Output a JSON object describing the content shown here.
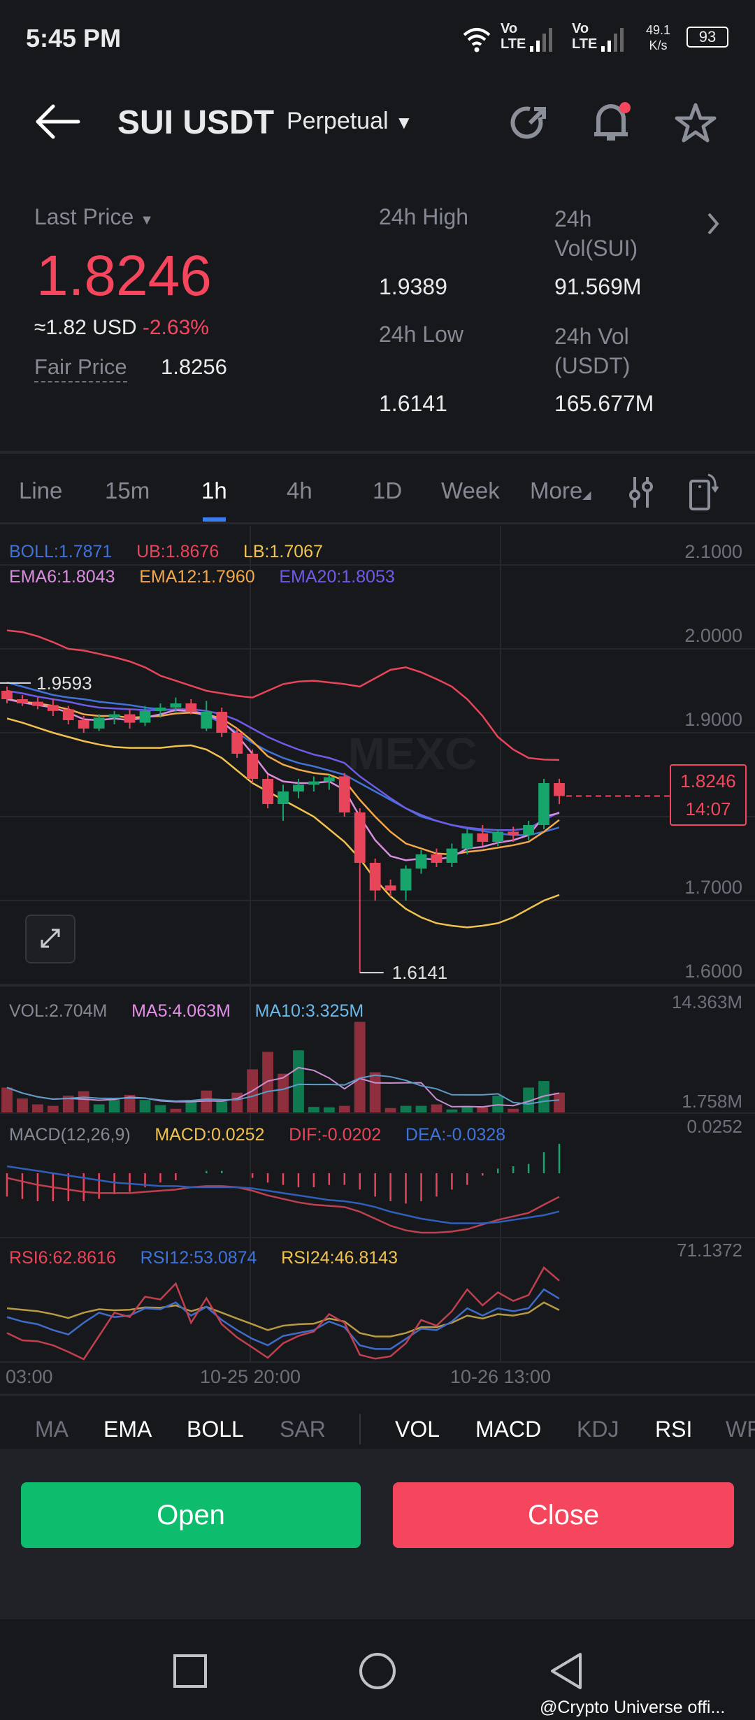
{
  "status_bar": {
    "time": "5:45 PM",
    "network1": "Vo LTE",
    "network2": "Vo LTE",
    "speed_value": "49.1",
    "speed_unit": "K/s",
    "battery": "93"
  },
  "header": {
    "title": "SUI USDT",
    "contract_type": "Perpetual",
    "icons": [
      "back-arrow-icon",
      "refresh-icon",
      "bell-icon",
      "star-icon"
    ]
  },
  "ticker": {
    "last_price_label": "Last Price",
    "last_price": "1.8246",
    "usd_value": "≈1.82 USD",
    "change": "-2.63%",
    "fair_price_label": "Fair Price",
    "fair_price": "1.8256",
    "high_label": "24h High",
    "high": "1.9389",
    "low_label": "24h Low",
    "low": "1.6141",
    "vol_sui_label_1": "24h",
    "vol_sui_label_2": "Vol(SUI)",
    "vol_sui": "91.569M",
    "vol_usdt_label_1": "24h Vol",
    "vol_usdt_label_2": "(USDT)",
    "vol_usdt": "165.677M"
  },
  "interval_tabs": [
    {
      "label": "Line"
    },
    {
      "label": "15m"
    },
    {
      "label": "1h",
      "active": true
    },
    {
      "label": "4h"
    },
    {
      "label": "1D"
    },
    {
      "label": "Week"
    },
    {
      "label": "More"
    }
  ],
  "colors": {
    "up": "#16a56b",
    "down": "#e8455a",
    "accent": "#3b7cf0",
    "open_button": "#0ebc6e",
    "close_button": "#f6465d"
  },
  "legends": {
    "boll": "BOLL:1.7871",
    "ub": "UB:1.8676",
    "lb": "LB:1.7067",
    "ema6": "EMA6:1.8043",
    "ema12": "EMA12:1.7960",
    "ema20": "EMA20:1.8053",
    "vol": "VOL:2.704M",
    "ma5": "MA5:4.063M",
    "ma10": "MA10:3.325M",
    "macd_params": "MACD(12,26,9)",
    "macd": "MACD:0.0252",
    "dif": "DIF:-0.0202",
    "dea": "DEA:-0.0328",
    "rsi6": "RSI6:62.8616",
    "rsi12": "RSI12:53.0874",
    "rsi24": "RSI24:46.8143"
  },
  "chart_data": {
    "type": "candlestick",
    "price_ticks": [
      "2.1000",
      "2.0000",
      "1.9000",
      "1.7000",
      "1.6000"
    ],
    "price_tick_values": [
      2.1,
      2.0,
      1.9,
      1.7,
      1.6
    ],
    "current_price_tag": "1.8246",
    "countdown": "14:07",
    "high_marker": "1.9593",
    "low_marker": "1.6141",
    "watermark": "MEXC",
    "time_labels": [
      "03:00",
      "10-25 20:00",
      "10-26 13:00"
    ],
    "ohlc": [
      [
        1.95,
        1.955,
        1.935,
        1.94
      ],
      [
        1.94,
        1.945,
        1.932,
        1.935
      ],
      [
        1.937,
        1.942,
        1.928,
        1.932
      ],
      [
        1.933,
        1.94,
        1.92,
        1.926
      ],
      [
        1.928,
        1.932,
        1.91,
        1.915
      ],
      [
        1.915,
        1.92,
        1.9,
        1.905
      ],
      [
        1.905,
        1.922,
        1.902,
        1.918
      ],
      [
        1.918,
        1.926,
        1.91,
        1.922
      ],
      [
        1.922,
        1.928,
        1.905,
        1.912
      ],
      [
        1.912,
        1.932,
        1.908,
        1.926
      ],
      [
        1.926,
        1.935,
        1.918,
        1.93
      ],
      [
        1.93,
        1.942,
        1.925,
        1.935
      ],
      [
        1.935,
        1.94,
        1.922,
        1.925
      ],
      [
        1.905,
        1.938,
        1.902,
        1.925
      ],
      [
        1.925,
        1.93,
        1.895,
        1.9
      ],
      [
        1.9,
        1.905,
        1.87,
        1.875
      ],
      [
        1.875,
        1.88,
        1.84,
        1.845
      ],
      [
        1.845,
        1.85,
        1.81,
        1.815
      ],
      [
        1.815,
        1.838,
        1.795,
        1.83
      ],
      [
        1.83,
        1.845,
        1.822,
        1.838
      ],
      [
        1.838,
        1.848,
        1.83,
        1.842
      ],
      [
        1.842,
        1.85,
        1.832,
        1.847
      ],
      [
        1.848,
        1.852,
        1.8,
        1.805
      ],
      [
        1.805,
        1.81,
        1.6141,
        1.745
      ],
      [
        1.745,
        1.75,
        1.7,
        1.712
      ],
      [
        1.718,
        1.725,
        1.705,
        1.712
      ],
      [
        1.712,
        1.742,
        1.7,
        1.738
      ],
      [
        1.738,
        1.76,
        1.732,
        1.755
      ],
      [
        1.755,
        1.762,
        1.74,
        1.745
      ],
      [
        1.745,
        1.768,
        1.74,
        1.762
      ],
      [
        1.762,
        1.785,
        1.755,
        1.78
      ],
      [
        1.78,
        1.79,
        1.765,
        1.77
      ],
      [
        1.77,
        1.785,
        1.765,
        1.782
      ],
      [
        1.782,
        1.788,
        1.77,
        1.778
      ],
      [
        1.778,
        1.795,
        1.772,
        1.79
      ],
      [
        1.79,
        1.845,
        1.785,
        1.84
      ],
      [
        1.84,
        1.845,
        1.815,
        1.8246
      ]
    ],
    "boll_ub": [
      2.022,
      2.02,
      2.015,
      2.008,
      2.0,
      1.998,
      1.994,
      1.99,
      1.985,
      1.978,
      1.968,
      1.962,
      1.956,
      1.95,
      1.947,
      1.944,
      1.942,
      1.95,
      1.958,
      1.961,
      1.962,
      1.96,
      1.958,
      1.955,
      1.965,
      1.975,
      1.978,
      1.972,
      1.964,
      1.955,
      1.94,
      1.92,
      1.895,
      1.88,
      1.87,
      1.868,
      1.8676
    ],
    "boll_lb": [
      1.917,
      1.912,
      1.906,
      1.9,
      1.895,
      1.89,
      1.886,
      1.883,
      1.882,
      1.882,
      1.882,
      1.884,
      1.885,
      1.88,
      1.87,
      1.855,
      1.84,
      1.83,
      1.82,
      1.81,
      1.8,
      1.785,
      1.77,
      1.75,
      1.725,
      1.705,
      1.69,
      1.68,
      1.673,
      1.67,
      1.668,
      1.67,
      1.673,
      1.68,
      1.69,
      1.7,
      1.7067
    ],
    "boll_mid": [
      1.96,
      1.955,
      1.95,
      1.945,
      1.942,
      1.94,
      1.937,
      1.935,
      1.933,
      1.93,
      1.928,
      1.927,
      1.925,
      1.92,
      1.912,
      1.9,
      1.888,
      1.878,
      1.87,
      1.864,
      1.86,
      1.855,
      1.85,
      1.84,
      1.83,
      1.82,
      1.81,
      1.8,
      1.795,
      1.79,
      1.786,
      1.783,
      1.78,
      1.778,
      1.778,
      1.782,
      1.7871
    ],
    "ema20": [
      1.95,
      1.947,
      1.943,
      1.94,
      1.937,
      1.933,
      1.93,
      1.929,
      1.928,
      1.927,
      1.927,
      1.928,
      1.928,
      1.926,
      1.922,
      1.915,
      1.905,
      1.895,
      1.887,
      1.88,
      1.874,
      1.87,
      1.864,
      1.848,
      1.835,
      1.822,
      1.81,
      1.802,
      1.795,
      1.79,
      1.787,
      1.785,
      1.784,
      1.784,
      1.786,
      1.796,
      1.8053
    ],
    "ema12": [
      1.94,
      1.937,
      1.935,
      1.932,
      1.928,
      1.922,
      1.92,
      1.92,
      1.918,
      1.919,
      1.92,
      1.923,
      1.924,
      1.922,
      1.917,
      1.905,
      1.89,
      1.872,
      1.862,
      1.856,
      1.852,
      1.85,
      1.843,
      1.82,
      1.8,
      1.782,
      1.768,
      1.762,
      1.756,
      1.755,
      1.758,
      1.76,
      1.763,
      1.766,
      1.77,
      1.782,
      1.796
    ],
    "ema6": [
      1.94,
      1.936,
      1.933,
      1.93,
      1.924,
      1.916,
      1.915,
      1.917,
      1.915,
      1.918,
      1.922,
      1.927,
      1.926,
      1.922,
      1.914,
      1.897,
      1.875,
      1.851,
      1.842,
      1.84,
      1.84,
      1.842,
      1.832,
      1.8,
      1.772,
      1.753,
      1.748,
      1.75,
      1.749,
      1.752,
      1.762,
      1.764,
      1.769,
      1.772,
      1.778,
      1.8,
      1.8043
    ],
    "volume_ticks": [
      "14.363M",
      "1.758M"
    ],
    "volume_max": 14.363,
    "volume": [
      3.4,
      1.9,
      1.1,
      0.9,
      2.3,
      2.9,
      1.1,
      1.7,
      2.4,
      1.7,
      1.0,
      0.5,
      1.7,
      3.0,
      1.5,
      2.7,
      5.9,
      8.3,
      5.3,
      8.5,
      0.75,
      0.7,
      0.9,
      12.4,
      5.5,
      0.6,
      0.9,
      0.9,
      1.1,
      0.4,
      0.7,
      0.7,
      2.3,
      0.5,
      3.4,
      4.3,
      2.704
    ],
    "volume_up": [
      false,
      false,
      false,
      false,
      false,
      false,
      true,
      true,
      false,
      true,
      true,
      false,
      true,
      false,
      true,
      false,
      false,
      false,
      false,
      true,
      true,
      true,
      false,
      false,
      false,
      false,
      true,
      true,
      false,
      true,
      true,
      false,
      true,
      false,
      true,
      true,
      false
    ],
    "macd_tick": "0.0252",
    "dif": [
      -0.004,
      -0.007,
      -0.01,
      -0.012,
      -0.014,
      -0.016,
      -0.017,
      -0.017,
      -0.017,
      -0.016,
      -0.015,
      -0.014,
      -0.012,
      -0.011,
      -0.011,
      -0.012,
      -0.015,
      -0.019,
      -0.022,
      -0.025,
      -0.027,
      -0.028,
      -0.029,
      -0.033,
      -0.039,
      -0.045,
      -0.049,
      -0.051,
      -0.051,
      -0.05,
      -0.048,
      -0.044,
      -0.04,
      -0.037,
      -0.034,
      -0.027,
      -0.0202
    ],
    "dea": [
      0.006,
      0.004,
      0.002,
      0.0,
      -0.002,
      -0.004,
      -0.006,
      -0.008,
      -0.009,
      -0.01,
      -0.011,
      -0.011,
      -0.012,
      -0.012,
      -0.012,
      -0.012,
      -0.013,
      -0.015,
      -0.017,
      -0.019,
      -0.021,
      -0.023,
      -0.024,
      -0.026,
      -0.029,
      -0.033,
      -0.036,
      -0.039,
      -0.041,
      -0.043,
      -0.043,
      -0.043,
      -0.042,
      -0.04,
      -0.038,
      -0.036,
      -0.0328
    ],
    "rsi_tick": "71.1372",
    "rsi6": [
      34.3,
      30.3,
      29.8,
      27.6,
      24.0,
      20.0,
      32.7,
      45.4,
      43.0,
      54.1,
      52.6,
      61.3,
      39.9,
      53.3,
      39.1,
      31.9,
      26.4,
      20.8,
      28.7,
      32.7,
      35.1,
      44.6,
      39.9,
      22.4,
      20.3,
      21.6,
      28.7,
      41.4,
      38.3,
      46.2,
      58.1,
      49.4,
      56.5,
      51.8,
      55.0,
      70.0,
      62.8616
    ],
    "rsi12": [
      43.0,
      40.6,
      39.1,
      35.9,
      33.5,
      39.9,
      45.4,
      43.0,
      43.8,
      47.8,
      47.3,
      51.0,
      43.8,
      48.6,
      41.4,
      35.9,
      31.1,
      27.6,
      32.7,
      34.3,
      35.9,
      40.6,
      37.5,
      27.6,
      25.6,
      25.6,
      31.1,
      36.7,
      35.9,
      40.6,
      47.8,
      43.8,
      47.8,
      46.2,
      47.8,
      58.1,
      53.0874
    ],
    "rsi24": [
      47.8,
      47.0,
      46.2,
      44.6,
      42.5,
      45.4,
      47.3,
      46.7,
      47.0,
      48.3,
      48.1,
      49.4,
      46.2,
      48.6,
      45.4,
      42.2,
      39.1,
      35.9,
      38.3,
      39.1,
      39.4,
      42.2,
      40.6,
      34.3,
      32.4,
      32.4,
      34.3,
      37.5,
      37.5,
      39.9,
      43.8,
      42.2,
      44.6,
      43.8,
      45.4,
      51.0,
      46.8143
    ]
  },
  "indicator_tabs": [
    {
      "label": "MA"
    },
    {
      "label": "EMA",
      "active": true
    },
    {
      "label": "BOLL",
      "active": true
    },
    {
      "label": "SAR"
    },
    {
      "label": "VOL",
      "active": true
    },
    {
      "label": "MACD",
      "active": true
    },
    {
      "label": "KDJ"
    },
    {
      "label": "RSI",
      "active": true
    },
    {
      "label": "WR"
    }
  ],
  "actions": {
    "open": "Open",
    "close": "Close"
  },
  "watermark_credit": "@Crypto Universe offi..."
}
